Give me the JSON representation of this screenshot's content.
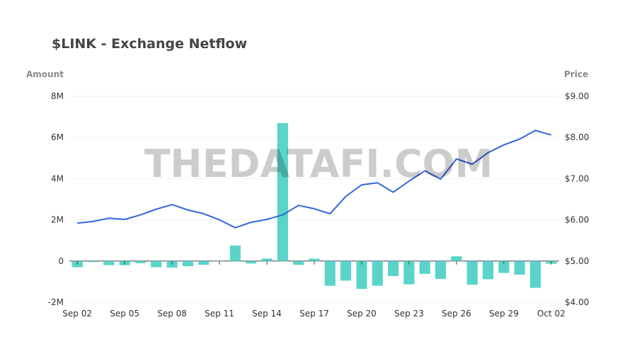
{
  "chart_data": {
    "type": "bar+line",
    "title": "$LINK - Exchange Netflow",
    "left_axis_label": "Amount",
    "right_axis_label": "Price",
    "watermark": "THEDATAFI.COM",
    "colors": {
      "bars": "#5ad4c9",
      "line": "#3366dd"
    },
    "x": [
      "Sep 02",
      "Sep 03",
      "Sep 04",
      "Sep 05",
      "Sep 06",
      "Sep 07",
      "Sep 08",
      "Sep 09",
      "Sep 10",
      "Sep 11",
      "Sep 12",
      "Sep 13",
      "Sep 14",
      "Sep 15",
      "Sep 16",
      "Sep 17",
      "Sep 18",
      "Sep 19",
      "Sep 20",
      "Sep 21",
      "Sep 22",
      "Sep 23",
      "Sep 24",
      "Sep 25",
      "Sep 26",
      "Sep 27",
      "Sep 28",
      "Sep 29",
      "Sep 30",
      "Oct 01",
      "Oct 02"
    ],
    "x_tick_labels": [
      "Sep 02",
      "Sep 05",
      "Sep 08",
      "Sep 11",
      "Sep 14",
      "Sep 17",
      "Sep 20",
      "Sep 23",
      "Sep 26",
      "Sep 29",
      "Oct 02"
    ],
    "left_axis": {
      "min": -2000000,
      "max": 8000000,
      "ticks": [
        -2000000,
        0,
        2000000,
        4000000,
        6000000,
        8000000
      ],
      "tick_labels": [
        "-2M",
        "0",
        "2M",
        "4M",
        "6M",
        "8M"
      ]
    },
    "right_axis": {
      "min": 4.0,
      "max": 9.0,
      "ticks": [
        4,
        5,
        6,
        7,
        8,
        9
      ],
      "tick_labels": [
        "$4.00",
        "$5.00",
        "$6.00",
        "$7.00",
        "$8.00",
        "$9.00"
      ]
    },
    "series": [
      {
        "name": "Netflow",
        "type": "bar",
        "axis": "left",
        "values": [
          -300000,
          -50000,
          -200000,
          -200000,
          -100000,
          -300000,
          -320000,
          -250000,
          -180000,
          0,
          750000,
          -120000,
          120000,
          6700000,
          -180000,
          120000,
          -1200000,
          -950000,
          -1350000,
          -1200000,
          -730000,
          -1130000,
          -620000,
          -870000,
          230000,
          -1150000,
          -880000,
          -580000,
          -660000,
          -1300000,
          -130000
        ]
      },
      {
        "name": "Price",
        "type": "line",
        "axis": "right",
        "values": [
          5.92,
          5.96,
          6.04,
          6.01,
          6.12,
          6.26,
          6.37,
          6.24,
          6.15,
          6.0,
          5.81,
          5.94,
          6.01,
          6.12,
          6.35,
          6.27,
          6.15,
          6.57,
          6.85,
          6.9,
          6.67,
          6.94,
          7.19,
          6.99,
          7.48,
          7.35,
          7.63,
          7.82,
          7.96,
          8.17,
          8.06
        ]
      }
    ]
  }
}
